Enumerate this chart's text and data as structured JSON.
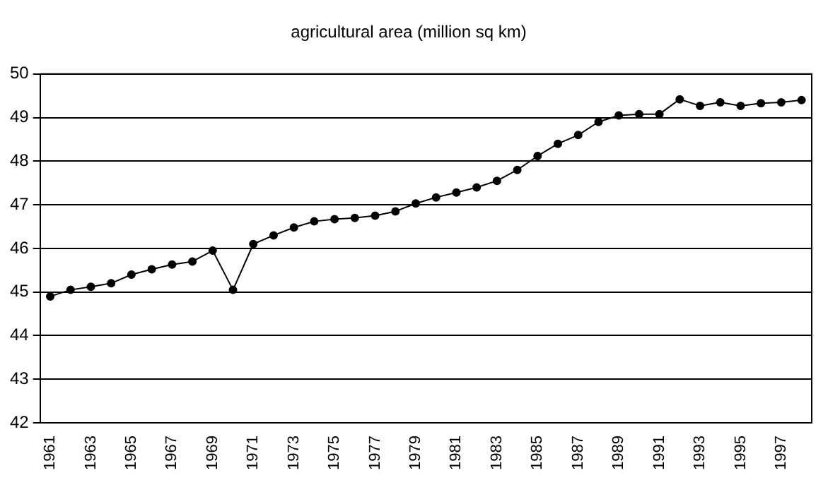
{
  "chart_data": {
    "type": "line",
    "title": "agricultural area (million sq km)",
    "categories": [
      "1961",
      null,
      "1963",
      null,
      "1965",
      null,
      "1967",
      null,
      "1969",
      null,
      "1971",
      null,
      "1973",
      null,
      "1975",
      null,
      "1977",
      null,
      "1979",
      null,
      "1981",
      null,
      "1983",
      null,
      "1985",
      null,
      "1987",
      null,
      "1989",
      null,
      "1991",
      null,
      "1993",
      null,
      "1995",
      null,
      "1997",
      null
    ],
    "series": [
      {
        "color": "#000000",
        "values": [
          44.9,
          45.05,
          45.12,
          45.2,
          45.4,
          45.52,
          45.63,
          45.7,
          45.95,
          45.05,
          46.1,
          46.3,
          46.48,
          46.62,
          46.67,
          46.7,
          46.75,
          46.85,
          47.03,
          47.17,
          47.28,
          47.4,
          47.55,
          47.8,
          48.12,
          48.4,
          48.6,
          48.9,
          49.05,
          49.08,
          49.08,
          49.42,
          49.27,
          49.35,
          49.27,
          49.33,
          49.35,
          49.4
        ]
      }
    ],
    "ylim": [
      42,
      50
    ],
    "yticks": [
      42,
      43,
      44,
      45,
      46,
      47,
      48,
      49,
      50
    ],
    "grid": "y",
    "legend": false,
    "marker": "circle",
    "line_style": "solid"
  }
}
